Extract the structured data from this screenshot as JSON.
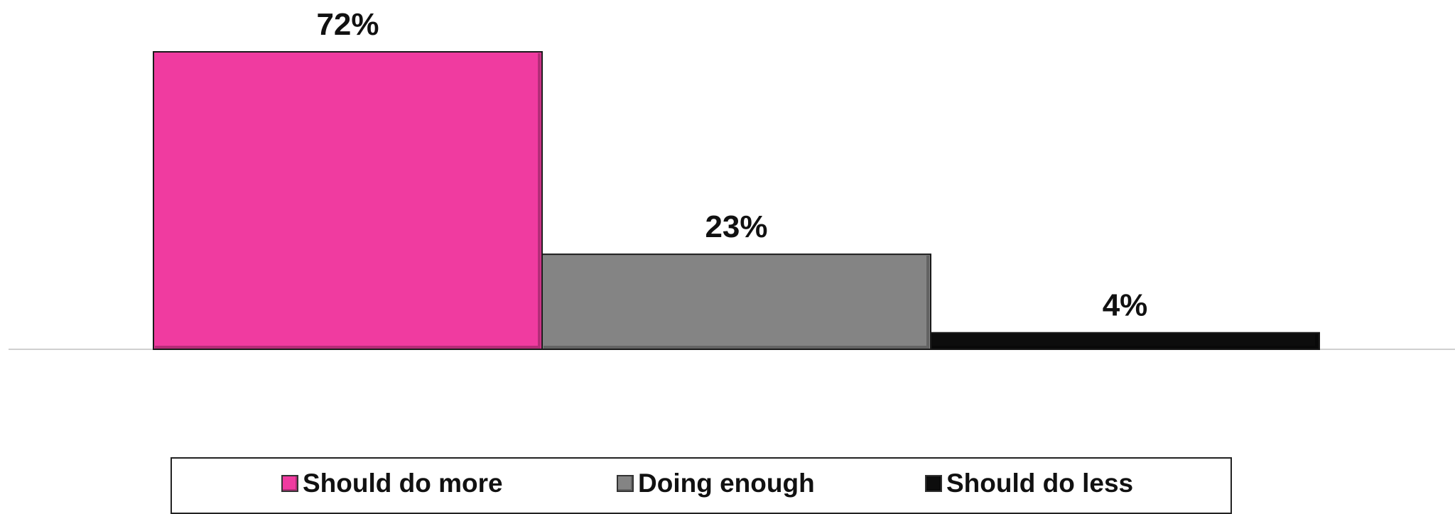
{
  "chart_data": {
    "type": "bar",
    "categories": [
      "Should do more",
      "Doing enough",
      "Should do less"
    ],
    "values": [
      72,
      23,
      4
    ],
    "value_labels": [
      "72%",
      "23%",
      "4%"
    ],
    "colors": [
      "#f03ba0",
      "#848484",
      "#0d0d0d"
    ],
    "ylim": [
      0,
      72
    ],
    "grid": false,
    "legend_position": "bottom"
  },
  "legend": {
    "items": [
      {
        "label": "Should do more",
        "color": "#f03ba0"
      },
      {
        "label": "Doing enough",
        "color": "#848484"
      },
      {
        "label": "Should do less",
        "color": "#0d0d0d"
      }
    ]
  }
}
